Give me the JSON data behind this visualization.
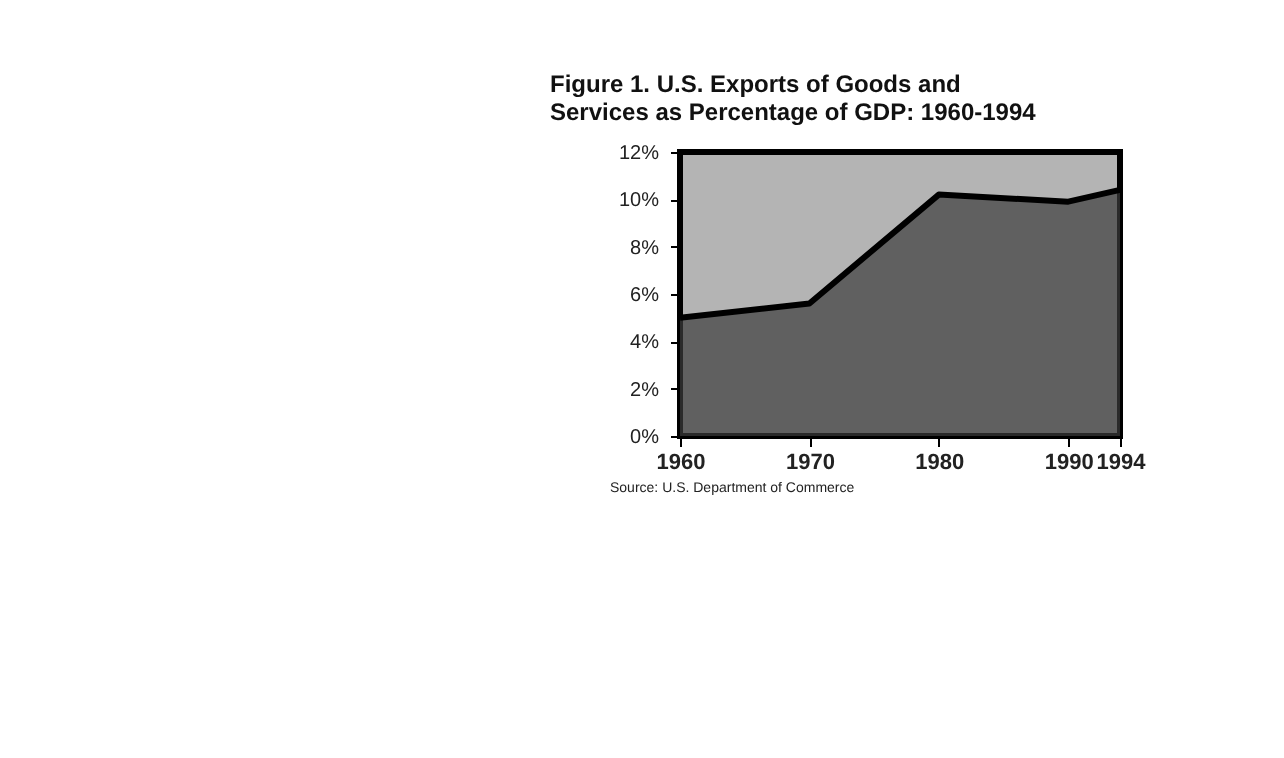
{
  "chart_data": {
    "type": "area",
    "title": [
      "Figure 1. U.S. Exports of Goods and",
      "Services as Percentage of GDP:  1960-1994"
    ],
    "x": [
      1960,
      1970,
      1980,
      1990,
      1994
    ],
    "series": [
      {
        "color": "#3c3c3c",
        "values": [
          5.0,
          5.6,
          10.2,
          9.9,
          10.4
        ]
      }
    ],
    "xlim": [
      1960,
      1994
    ],
    "xticks": [
      1960,
      1970,
      1980,
      1990,
      1994
    ],
    "ylim": [
      0,
      12
    ],
    "yticks": [
      {
        "value": 0,
        "label": "0%"
      },
      {
        "value": 2,
        "label": "2%"
      },
      {
        "value": 4,
        "label": "4%"
      },
      {
        "value": 6,
        "label": "6%"
      },
      {
        "value": 8,
        "label": "8%"
      },
      {
        "value": 10,
        "label": "10%"
      },
      {
        "value": 12,
        "label": "12%"
      }
    ],
    "grid": false,
    "annotations": [
      "Source: U.S. Department of Commerce"
    ]
  }
}
